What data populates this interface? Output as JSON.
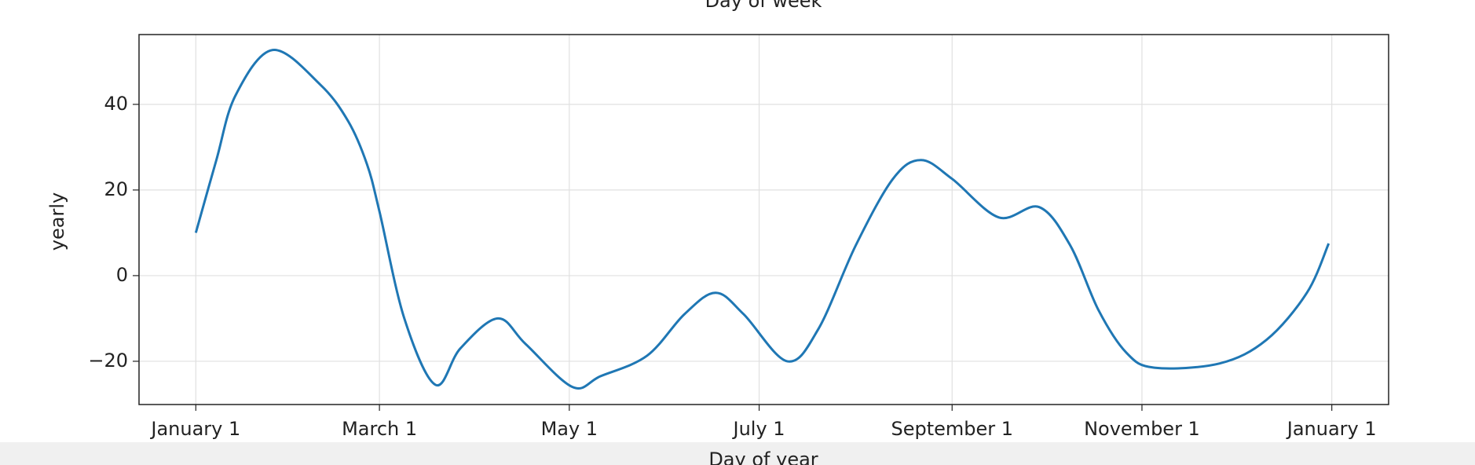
{
  "chart_data": {
    "type": "line",
    "title": "Day of week",
    "x_label": "Day of year",
    "y_label": "yearly",
    "x": [
      0,
      6.6,
      12.7,
      24.7,
      40,
      49,
      55,
      59,
      67,
      77,
      85,
      97,
      106,
      121,
      130,
      145,
      157,
      167,
      176,
      190,
      200,
      212,
      224,
      233,
      243,
      258,
      271,
      281,
      290,
      299,
      308,
      329,
      344,
      357,
      364
    ],
    "values": [
      10,
      27,
      42,
      52.7,
      44.6,
      36,
      26,
      15,
      -10,
      -25.5,
      -17,
      -10,
      -16,
      -26,
      -23.5,
      -18.7,
      -9,
      -4,
      -9,
      -20,
      -12.5,
      7,
      22.6,
      27,
      22.6,
      13.6,
      16,
      7,
      -8,
      -18,
      -21.5,
      -20.5,
      -15,
      -4,
      7.5
    ],
    "color": "#1f77b4",
    "xlim": [
      -18.25,
      383.25
    ],
    "xticks": [
      {
        "value": 0,
        "label": "January 1"
      },
      {
        "value": 59,
        "label": "March 1"
      },
      {
        "value": 120,
        "label": "May 1"
      },
      {
        "value": 181,
        "label": "July 1"
      },
      {
        "value": 243,
        "label": "September 1"
      },
      {
        "value": 304,
        "label": "November 1"
      },
      {
        "value": 365,
        "label": "January 1"
      }
    ],
    "ylim": [
      -30.1,
      56.3
    ],
    "yticks": [
      {
        "value": -20,
        "label": "−20"
      },
      0,
      20,
      40
    ],
    "grid": true
  }
}
